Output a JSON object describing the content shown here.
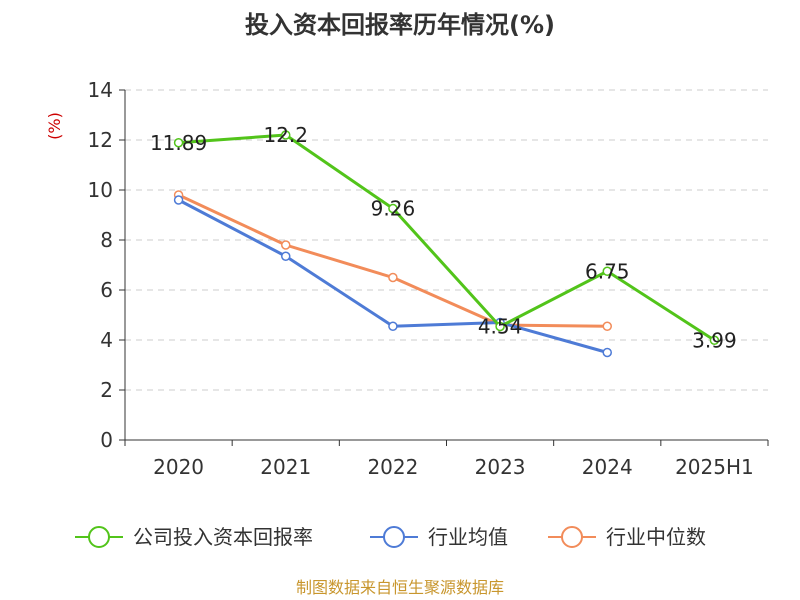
{
  "chart_data": {
    "type": "line",
    "title": "投入资本回报率历年情况(%)",
    "unit_label": "(%)",
    "categories": [
      "2020",
      "2021",
      "2022",
      "2023",
      "2024",
      "2025H1"
    ],
    "ylim": [
      0,
      14
    ],
    "yticks": [
      0,
      2,
      4,
      6,
      8,
      10,
      12,
      14
    ],
    "grid": true,
    "legend_position": "bottom",
    "series": [
      {
        "name": "公司投入资本回报率",
        "color": "#52c41a",
        "values": [
          11.89,
          12.2,
          9.26,
          4.54,
          6.75,
          3.99
        ],
        "labels": [
          "11.89",
          "12.2",
          "9.26",
          "4.54",
          "6.75",
          "3.99"
        ]
      },
      {
        "name": "行业均值",
        "color": "#4e7bd6",
        "values": [
          9.6,
          7.35,
          4.55,
          4.7,
          3.5,
          null
        ]
      },
      {
        "name": "行业中位数",
        "color": "#f28c5a",
        "values": [
          9.8,
          7.8,
          6.5,
          4.6,
          4.55,
          null
        ]
      }
    ],
    "source": "制图数据来自恒生聚源数据库",
    "colors": {
      "unit": "#cc0000",
      "source": "#c8962d",
      "grid": "#cccccc",
      "axis": "#333333"
    }
  }
}
